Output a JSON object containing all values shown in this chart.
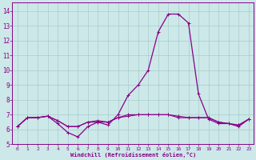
{
  "xlabel": "Windchill (Refroidissement éolien,°C)",
  "hours": [
    0,
    1,
    2,
    3,
    4,
    5,
    6,
    7,
    8,
    9,
    10,
    11,
    12,
    13,
    14,
    15,
    16,
    17,
    18,
    19,
    20,
    21,
    22,
    23
  ],
  "windchill": [
    6.2,
    6.8,
    6.8,
    6.9,
    6.4,
    5.8,
    5.5,
    6.2,
    6.5,
    6.3,
    7.0,
    8.3,
    9.0,
    10.0,
    12.6,
    13.8,
    13.8,
    13.2,
    8.4,
    6.7,
    6.4,
    6.4,
    6.2,
    6.7
  ],
  "temperature": [
    6.2,
    6.8,
    6.8,
    6.9,
    6.6,
    6.2,
    6.2,
    6.5,
    6.6,
    6.5,
    6.8,
    7.0,
    7.0,
    7.0,
    7.0,
    7.0,
    6.8,
    6.8,
    6.8,
    6.8,
    6.5,
    6.4,
    6.3,
    6.7
  ],
  "apparent": [
    6.2,
    6.8,
    6.8,
    6.9,
    6.6,
    6.2,
    6.2,
    6.5,
    6.5,
    6.5,
    6.8,
    6.9,
    7.0,
    7.0,
    7.0,
    7.0,
    6.9,
    6.8,
    6.8,
    6.8,
    6.5,
    6.4,
    6.3,
    6.7
  ],
  "line_color": "#880088",
  "bg_color": "#cce8e8",
  "grid_color": "#aacccc",
  "ylim": [
    5,
    14.6
  ],
  "yticks": [
    5,
    6,
    7,
    8,
    9,
    10,
    11,
    12,
    13,
    14
  ],
  "figsize": [
    3.2,
    2.0
  ],
  "dpi": 100
}
